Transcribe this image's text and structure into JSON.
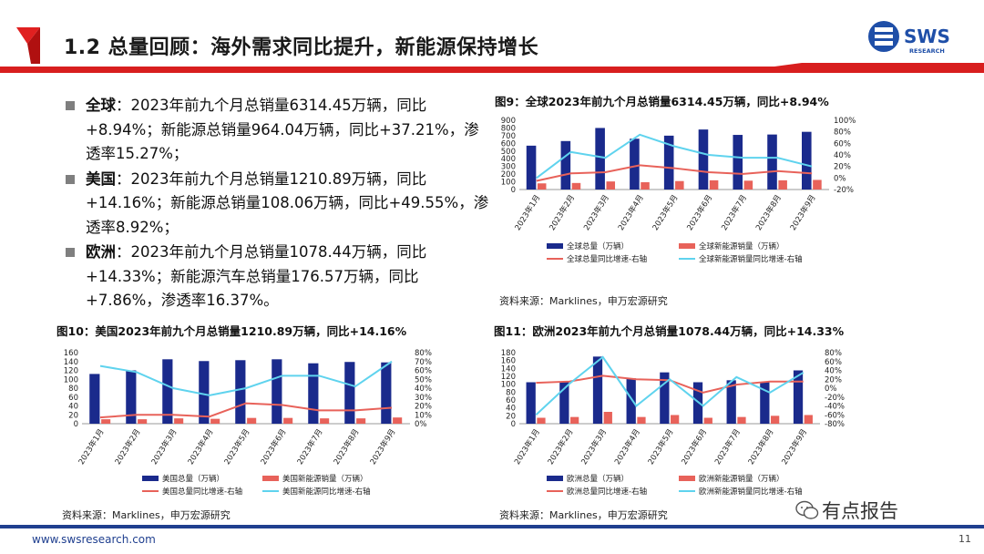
{
  "header": {
    "title": "1.2 总量回顾：海外需求同比提升，新能源保持增长",
    "logo_text": "SWS",
    "logo_sub": "RESEARCH"
  },
  "bullets": [
    {
      "label": "全球",
      "text": "：2023年前九个月总销量6314.45万辆，同比+8.94%；新能源总销量964.04万辆，同比+37.21%，渗透率15.27%；"
    },
    {
      "label": "美国",
      "text": "：2023年前九个月总销量1210.89万辆，同比+14.16%；新能源总销量108.06万辆，同比+49.55%，渗透率8.92%；"
    },
    {
      "label": "欧洲",
      "text": "：2023年前九个月总销量1078.44万辆，同比+14.33%；新能源汽车总销量176.57万辆，同比+7.86%，渗透率16.37%。"
    }
  ],
  "footer": {
    "url": "www.swsresearch.com",
    "page": "11",
    "watermark": "有点报告"
  },
  "chart_data": [
    {
      "id": "fig9",
      "type": "bar",
      "title": "图9：全球2023年前九个月总销量6314.45万辆，同比+8.94%",
      "source": "资料来源：Marklines，申万宏源研究",
      "categories": [
        "2023年1月",
        "2023年2月",
        "2023年3月",
        "2023年4月",
        "2023年5月",
        "2023年6月",
        "2023年7月",
        "2023年8月",
        "2023年9月"
      ],
      "ylim": [
        0,
        900
      ],
      "yticks": [
        0,
        100,
        200,
        300,
        400,
        500,
        600,
        700,
        800,
        900
      ],
      "y2lim": [
        -20,
        100
      ],
      "y2ticks": [
        "-20%",
        "0%",
        "20%",
        "40%",
        "60%",
        "80%",
        "100%"
      ],
      "y2tick_values": [
        -20,
        0,
        20,
        40,
        60,
        80,
        100
      ],
      "series": [
        {
          "name": "全球总量（万辆）",
          "kind": "bar",
          "color": "#1a2a8c",
          "values": [
            570,
            630,
            800,
            660,
            700,
            780,
            710,
            715,
            750
          ]
        },
        {
          "name": "全球新能源销量（万辆）",
          "kind": "bar",
          "color": "#e8625a",
          "values": [
            80,
            85,
            105,
            95,
            110,
            120,
            115,
            120,
            125
          ]
        },
        {
          "name": "全球总量同比增速-右轴",
          "kind": "line",
          "color": "#e8625a",
          "axis": "right",
          "values": [
            -5,
            8,
            10,
            22,
            17,
            10,
            7,
            12,
            8
          ]
        },
        {
          "name": "全球新能源销量同比增速-右轴",
          "kind": "line",
          "color": "#5fd3ee",
          "axis": "right",
          "values": [
            0,
            45,
            35,
            75,
            55,
            40,
            35,
            35,
            20
          ]
        }
      ]
    },
    {
      "id": "fig10",
      "type": "bar",
      "title": "图10：美国2023年前九个月总销量1210.89万辆，同比+14.16%",
      "source": "资料来源：Marklines，申万宏源研究",
      "categories": [
        "2023年1月",
        "2023年2月",
        "2023年3月",
        "2023年4月",
        "2023年5月",
        "2023年6月",
        "2023年7月",
        "2023年8月",
        "2023年9月"
      ],
      "ylim": [
        0,
        160
      ],
      "yticks": [
        0,
        20,
        40,
        60,
        80,
        100,
        120,
        140,
        160
      ],
      "y2lim": [
        0,
        80
      ],
      "y2ticks": [
        "0%",
        "10%",
        "20%",
        "30%",
        "40%",
        "50%",
        "60%",
        "70%",
        "80%"
      ],
      "y2tick_values": [
        0,
        10,
        20,
        30,
        40,
        50,
        60,
        70,
        80
      ],
      "series": [
        {
          "name": "美国总量（万辆）",
          "kind": "bar",
          "color": "#1a2a8c",
          "values": [
            112,
            120,
            145,
            141,
            143,
            145,
            136,
            139,
            138
          ]
        },
        {
          "name": "美国新能源销量（万辆）",
          "kind": "bar",
          "color": "#e8625a",
          "values": [
            10,
            10,
            12,
            11,
            13,
            13,
            12,
            12,
            14
          ]
        },
        {
          "name": "美国总量同比增速-右轴",
          "kind": "line",
          "color": "#e8625a",
          "axis": "right",
          "values": [
            7,
            10,
            10,
            8,
            23,
            21,
            15,
            15,
            18
          ]
        },
        {
          "name": "美国新能源同比增速-右轴",
          "kind": "line",
          "color": "#5fd3ee",
          "axis": "right",
          "values": [
            65,
            58,
            40,
            32,
            40,
            54,
            54,
            42,
            70
          ]
        }
      ]
    },
    {
      "id": "fig11",
      "type": "bar",
      "title": "图11：欧洲2023年前九个月总销量1078.44万辆，同比+14.33%",
      "source": "资料来源：Marklines，申万宏源研究",
      "categories": [
        "2023年1月",
        "2023年2月",
        "2023年3月",
        "2023年4月",
        "2023年5月",
        "2023年6月",
        "2023年7月",
        "2023年8月",
        "2023年9月"
      ],
      "ylim": [
        0,
        180
      ],
      "yticks": [
        0,
        20,
        40,
        60,
        80,
        100,
        120,
        140,
        160,
        180
      ],
      "y2lim": [
        -80,
        80
      ],
      "y2ticks": [
        "-80%",
        "-60%",
        "-40%",
        "-20%",
        "0%",
        "20%",
        "40%",
        "60%",
        "80%"
      ],
      "y2tick_values": [
        -80,
        -60,
        -40,
        -20,
        0,
        20,
        40,
        60,
        80
      ],
      "series": [
        {
          "name": "欧洲总量（万辆）",
          "kind": "bar",
          "color": "#1a2a8c",
          "values": [
            105,
            105,
            170,
            115,
            130,
            105,
            110,
            105,
            135
          ]
        },
        {
          "name": "欧洲新能源销量（万辆）",
          "kind": "bar",
          "color": "#e8625a",
          "values": [
            15,
            17,
            30,
            17,
            22,
            15,
            17,
            20,
            22
          ]
        },
        {
          "name": "欧洲总量同比增速-右轴",
          "kind": "line",
          "color": "#e8625a",
          "axis": "right",
          "values": [
            12,
            15,
            28,
            20,
            18,
            -10,
            8,
            15,
            15
          ]
        },
        {
          "name": "欧洲新能源销量同比增速-右轴",
          "kind": "line",
          "color": "#5fd3ee",
          "axis": "right",
          "values": [
            -60,
            10,
            70,
            -40,
            20,
            -40,
            25,
            -10,
            35
          ]
        }
      ]
    }
  ]
}
